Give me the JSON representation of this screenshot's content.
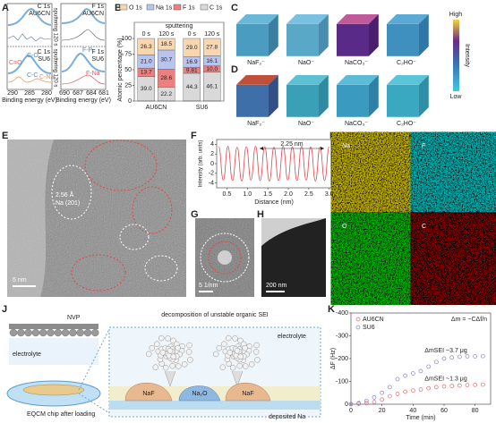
{
  "panel_labels": [
    "A",
    "B",
    "C",
    "D",
    "E",
    "F",
    "G",
    "H",
    "I",
    "J",
    "K"
  ],
  "panel_a": {
    "spectra": [
      {
        "core": "C 1s",
        "sample": "AU6CN"
      },
      {
        "core": "F 1s",
        "sample": "AU6CN"
      },
      {
        "core": "C 1s",
        "sample": "SU6"
      },
      {
        "core": "F 1s",
        "sample": "SU6"
      }
    ],
    "sputtering": "sputtering 120 s",
    "peaks_c": [
      "C-O",
      "C=O",
      "C-C",
      "C-Na"
    ],
    "peaks_f": [
      "F-P",
      "F-Na"
    ],
    "ticks_c": [
      290,
      285,
      280
    ],
    "ticks_f": [
      690,
      687,
      684,
      681
    ],
    "x_label": "Binding energy (eV)"
  },
  "panel_cd": {
    "species": [
      "NaF₂⁻",
      "NaO⁻",
      "NaCO₃⁻",
      "C₂HO⁻"
    ],
    "colorbar": {
      "high": "High",
      "low": "Low",
      "label": "Intensity"
    }
  },
  "panel_e": {
    "annotation": "2.56 Å",
    "plane": "Na (201)",
    "scale": "5 nm"
  },
  "panel_g": {
    "scale": "5 1/nm"
  },
  "panel_h": {
    "scale": "200 nm"
  },
  "panel_i": {
    "elements": [
      "Na",
      "F",
      "O",
      "C"
    ]
  },
  "panel_j": {
    "nvp": "NVP",
    "electrolyte": "electrolyte",
    "chip": "EQCM chip after loading",
    "decomposition": "decomposition of unstable organic SEI",
    "electrolyte_right": "electrolyte",
    "phases": [
      "NaF",
      "Na₂O",
      "NaF"
    ],
    "deposited": "deposited Na"
  },
  "chart_data": [
    {
      "type": "bar",
      "stacked": true,
      "y_label": "Atomic percentage (%)",
      "header": "sputtering",
      "categories": [
        "0 s",
        "120 s",
        "0 s",
        "120 s"
      ],
      "groups": [
        "AU6CN",
        "SU6"
      ],
      "series": [
        {
          "name": "O 1s",
          "color": "#f8d6b0",
          "values": [
            26.3,
            18.5,
            29.0,
            27.8
          ],
          "value_labels": [
            "26.3",
            "18.5",
            "29.0",
            "27.8"
          ]
        },
        {
          "name": "Na 1s",
          "color": "#b8c4ef",
          "values": [
            21.0,
            30.7,
            16.9,
            16.1
          ],
          "value_labels": [
            "21.0",
            "30.7",
            "16.9",
            "16.1"
          ]
        },
        {
          "name": "F 1s",
          "color": "#ee7f7f",
          "values": [
            13.7,
            28.6,
            9.81,
            10.0
          ],
          "value_labels": [
            "13.7",
            "28.6",
            "9.81",
            "10.0"
          ]
        },
        {
          "name": "C 1s",
          "color": "#d9d9d9",
          "values": [
            39.0,
            22.2,
            44.3,
            46.1
          ],
          "value_labels": [
            "39.0",
            "22.2",
            "44.3",
            "46.1"
          ]
        }
      ],
      "ylim": [
        0,
        100
      ],
      "yticks": [
        0,
        25,
        50,
        75,
        100
      ]
    },
    {
      "type": "line",
      "x_label": "Distance (nm)",
      "y_label": "Intensity (arb. units)",
      "annotation": "2.25 nm",
      "color": "#e0474c",
      "x": [
        0.3,
        0.4125,
        0.525,
        0.6375,
        0.75,
        0.8625,
        0.975,
        1.0875,
        1.2,
        1.3125,
        1.425,
        1.5375,
        1.65,
        1.7625,
        1.875,
        1.9875,
        2.1,
        2.2125,
        2.325,
        2.4375,
        2.55,
        2.6625,
        2.775,
        2.8875,
        3.0
      ],
      "values": [
        3.5,
        -3.4,
        3.6,
        -3.5,
        3.4,
        -3.6,
        3.5,
        -3.4,
        3.6,
        -3.5,
        3.5,
        -3.6,
        3.4,
        -3.5,
        3.6,
        -3.4,
        3.5,
        -3.5,
        3.6,
        -3.4,
        3.5,
        -3.6,
        3.4,
        -3.5,
        3.5
      ],
      "xlim": [
        0.25,
        3.05
      ],
      "xticks": [
        {
          "value": 0.5,
          "label": "0.5"
        },
        {
          "value": 1,
          "label": "1.0"
        },
        {
          "value": 1.5,
          "label": "1.5"
        },
        {
          "value": 2,
          "label": "2.0"
        },
        {
          "value": 2.5,
          "label": "2.5"
        },
        {
          "value": 3,
          "label": "3.0"
        }
      ],
      "ylim": [
        -5,
        5
      ],
      "yticks": [
        4,
        2,
        0,
        -2,
        -4
      ]
    },
    {
      "type": "scatter",
      "equation": "Δm = −CΔf/n",
      "annotations": [
        "ΔmSEI ~3.7 μg",
        "ΔmSEI ~1.3 μg"
      ],
      "x_label": "Time (min)",
      "y_label": "ΔF (Hz)",
      "x": [
        0,
        5,
        10,
        15,
        20,
        25,
        30,
        35,
        40,
        45,
        50,
        55,
        60,
        65,
        70,
        75,
        80,
        85
      ],
      "series": [
        {
          "name": "AU6CN",
          "color": "#e46a6a",
          "values": [
            0,
            -2,
            -5,
            -10,
            -20,
            -35,
            -45,
            -55,
            -60,
            -65,
            -70,
            -75,
            -78,
            -80,
            -82,
            -84,
            -85,
            -86
          ]
        },
        {
          "name": "SU6",
          "color": "#8a7fd0",
          "values": [
            0,
            -5,
            -15,
            -30,
            -50,
            -75,
            -110,
            -125,
            -135,
            -145,
            -165,
            -185,
            -200,
            -205,
            -208,
            -210,
            -210,
            -211
          ]
        }
      ],
      "xlim": [
        0,
        90
      ],
      "xticks": [
        0,
        20,
        40,
        60,
        80
      ],
      "ylim": [
        0,
        -400
      ],
      "yticks": [
        0,
        -100,
        -200,
        -300,
        -400
      ],
      "legend": "upper left"
    }
  ]
}
